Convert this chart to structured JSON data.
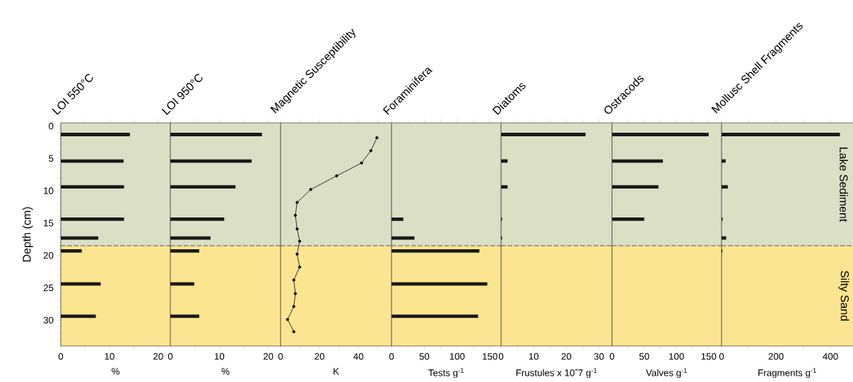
{
  "chart_data": [
    {
      "type": "bar",
      "orientation": "horizontal",
      "title": "LOI 550°C",
      "xlabel": "%",
      "ylabel": "Depth (cm)",
      "x": [
        1.3,
        5.4,
        9.4,
        14.4,
        17.3,
        19.3,
        24.4,
        29.4
      ],
      "values": [
        14.2,
        12.9,
        13.0,
        13.0,
        7.7,
        4.3,
        8.2,
        7.2
      ],
      "color": "#1a1a1a",
      "xlim": [
        0,
        22.5
      ],
      "xticks": [
        0,
        {
          "value": 5,
          "label": null
        },
        10,
        {
          "value": 15,
          "label": null
        },
        20
      ],
      "ylim": [
        34,
        -0.5
      ],
      "yticks": [
        0,
        {
          "value": 1,
          "label": null
        },
        {
          "value": 2,
          "label": null
        },
        {
          "value": 3,
          "label": null
        },
        {
          "value": 4,
          "label": null
        },
        5,
        {
          "value": 6,
          "label": null
        },
        {
          "value": 7,
          "label": null
        },
        {
          "value": 8,
          "label": null
        },
        {
          "value": 9,
          "label": null
        },
        10,
        {
          "value": 11,
          "label": null
        },
        {
          "value": 12,
          "label": null
        },
        {
          "value": 13,
          "label": null
        },
        {
          "value": 14,
          "label": null
        },
        15,
        {
          "value": 16,
          "label": null
        },
        {
          "value": 17,
          "label": null
        },
        {
          "value": 18,
          "label": null
        },
        {
          "value": 19,
          "label": null
        },
        20,
        {
          "value": 21,
          "label": null
        },
        {
          "value": 22,
          "label": null
        },
        {
          "value": 23,
          "label": null
        },
        {
          "value": 24,
          "label": null
        },
        25,
        {
          "value": 26,
          "label": null
        },
        {
          "value": 27,
          "label": null
        },
        {
          "value": 28,
          "label": null
        },
        {
          "value": 29,
          "label": null
        },
        30,
        {
          "value": 31,
          "label": null
        },
        {
          "value": 32,
          "label": null
        },
        {
          "value": 33,
          "label": null
        }
      ],
      "bands": [
        {
          "axis": "y",
          "from": -0.5,
          "to": 18.5,
          "color": "#dadfc6"
        },
        {
          "axis": "y",
          "from": 18.5,
          "to": 34,
          "color": "#fbe590"
        }
      ],
      "ref_lines": [
        {
          "axis": "y",
          "value": 18.5,
          "color": "#4d4d4d",
          "line_style": "dashed"
        }
      ]
    },
    {
      "type": "bar",
      "orientation": "horizontal",
      "title": "LOI 950°C",
      "xlabel": "%",
      "x": [
        1.3,
        5.4,
        9.4,
        14.4,
        17.3,
        19.3,
        24.4,
        29.4
      ],
      "values": [
        18.7,
        16.6,
        13.3,
        11.0,
        8.2,
        5.9,
        4.9,
        5.9
      ],
      "color": "#1a1a1a",
      "xlim": [
        0,
        22.5
      ],
      "xticks": [
        0,
        {
          "value": 5,
          "label": null
        },
        10,
        {
          "value": 15,
          "label": null
        },
        20
      ],
      "ylim": [
        34,
        -0.5
      ],
      "tick_labels": "x",
      "bands": [
        {
          "axis": "y",
          "from": -0.5,
          "to": 18.5,
          "color": "#dadfc6"
        },
        {
          "axis": "y",
          "from": 18.5,
          "to": 34,
          "color": "#fbe590"
        }
      ],
      "ref_lines": [
        {
          "axis": "y",
          "value": 18.5,
          "color": "#4d4d4d",
          "line_style": "dashed"
        }
      ]
    },
    {
      "type": "line",
      "title": "Magnetic Susceptibility",
      "xlabel": "K",
      "x": [
        49.5,
        46.4,
        41.6,
        28.8,
        15.5,
        8.5,
        7.6,
        8.5,
        9.8,
        8.5,
        9.8,
        6.8,
        7.6,
        6.8,
        3.6,
        6.8
      ],
      "values": [
        1.8,
        3.8,
        5.7,
        7.7,
        9.8,
        11.8,
        13.8,
        15.9,
        17.8,
        19.8,
        21.8,
        23.8,
        25.9,
        27.9,
        29.9,
        31.8
      ],
      "color": "#000000",
      "marker": "circle",
      "line_style": "solid",
      "xlim": [
        0,
        57
      ],
      "xticks": [
        0,
        {
          "value": 10,
          "label": null
        },
        20,
        {
          "value": 30,
          "label": null
        },
        40,
        {
          "value": 50,
          "label": null
        }
      ],
      "ylim": [
        34,
        -0.5
      ],
      "tick_labels": "x",
      "bands": [
        {
          "axis": "y",
          "from": -0.5,
          "to": 18.5,
          "color": "#dadfc6"
        },
        {
          "axis": "y",
          "from": 18.5,
          "to": 34,
          "color": "#fbe590"
        }
      ],
      "ref_lines": [
        {
          "axis": "y",
          "value": 18.5,
          "color": "#4d4d4d",
          "line_style": "dashed"
        }
      ]
    },
    {
      "type": "bar",
      "orientation": "horizontal",
      "title": "Foraminifera",
      "xlabel": "Tests g$^{-1}$",
      "x": [
        1.3,
        5.4,
        9.4,
        14.4,
        17.3,
        19.3,
        24.4,
        29.4
      ],
      "values": [
        0,
        0,
        0,
        18,
        35,
        134,
        146,
        132
      ],
      "color": "#1a1a1a",
      "xlim": [
        0,
        167
      ],
      "xticks": [
        0,
        {
          "value": 25,
          "label": null
        },
        50,
        {
          "value": 75,
          "label": null
        },
        100,
        {
          "value": 125,
          "label": null
        },
        150
      ],
      "ylim": [
        34,
        -0.5
      ],
      "tick_labels": "x",
      "bands": [
        {
          "axis": "y",
          "from": -0.5,
          "to": 18.5,
          "color": "#dadfc6"
        },
        {
          "axis": "y",
          "from": 18.5,
          "to": 34,
          "color": "#fbe590"
        }
      ],
      "ref_lines": [
        {
          "axis": "y",
          "value": 18.5,
          "color": "#4d4d4d",
          "line_style": "dashed"
        }
      ]
    },
    {
      "type": "bar",
      "orientation": "horizontal",
      "title": "Diatoms",
      "xlabel": "Frustules x 10ˆ7 g$^{-1}$",
      "x": [
        1.3,
        5.4,
        9.4,
        14.4,
        17.3,
        19.3,
        24.4,
        29.4
      ],
      "values": [
        25.9,
        2.0,
        2.0,
        0.3,
        0.3,
        0,
        0,
        0
      ],
      "color": "#1a1a1a",
      "xlim": [
        0,
        34
      ],
      "xticks": [
        0,
        {
          "value": 5,
          "label": null
        },
        10,
        {
          "value": 15,
          "label": null
        },
        20,
        {
          "value": 25,
          "label": null
        },
        30
      ],
      "ylim": [
        34,
        -0.5
      ],
      "tick_labels": "x",
      "bands": [
        {
          "axis": "y",
          "from": -0.5,
          "to": 18.5,
          "color": "#dadfc6"
        },
        {
          "axis": "y",
          "from": 18.5,
          "to": 34,
          "color": "#fbe590"
        }
      ],
      "ref_lines": [
        {
          "axis": "y",
          "value": 18.5,
          "color": "#4d4d4d",
          "line_style": "dashed"
        }
      ]
    },
    {
      "type": "bar",
      "orientation": "horizontal",
      "title": "Ostracods",
      "xlabel": "Valves g$^{-1}$",
      "x": [
        1.3,
        5.4,
        9.4,
        14.4,
        17.3,
        19.3,
        24.4,
        29.4
      ],
      "values": [
        150,
        79,
        72,
        50,
        0,
        0,
        0,
        0
      ],
      "color": "#1a1a1a",
      "xlim": [
        0,
        170
      ],
      "xticks": [
        0,
        {
          "value": 25,
          "label": null
        },
        50,
        {
          "value": 75,
          "label": null
        },
        100,
        {
          "value": 125,
          "label": null
        },
        150
      ],
      "ylim": [
        34,
        -0.5
      ],
      "tick_labels": "x",
      "bands": [
        {
          "axis": "y",
          "from": -0.5,
          "to": 18.5,
          "color": "#dadfc6"
        },
        {
          "axis": "y",
          "from": 18.5,
          "to": 34,
          "color": "#fbe590"
        }
      ],
      "ref_lines": [
        {
          "axis": "y",
          "value": 18.5,
          "color": "#4d4d4d",
          "line_style": "dashed"
        }
      ]
    },
    {
      "type": "bar",
      "orientation": "horizontal",
      "title": "Mollusc Shell Fragments",
      "xlabel": "Fragments g$^{-1}$",
      "x": [
        1.3,
        5.4,
        9.4,
        14.4,
        17.3,
        19.3,
        24.4,
        29.4
      ],
      "values": [
        435,
        15,
        23,
        4,
        17,
        3,
        0,
        0
      ],
      "color": "#1a1a1a",
      "xlim": [
        0,
        483
      ],
      "xticks": [
        0,
        {
          "value": 100,
          "label": null
        },
        200,
        {
          "value": 300,
          "label": null
        },
        400
      ],
      "ylim": [
        34,
        -0.5
      ],
      "tick_labels": "x",
      "bands": [
        {
          "axis": "y",
          "from": -0.5,
          "to": 18.5,
          "color": "#dadfc6",
          "label": "Lake Sediment"
        },
        {
          "axis": "y",
          "from": 18.5,
          "to": 34,
          "color": "#fbe590",
          "label": "Silty Sand"
        }
      ],
      "ref_lines": [
        {
          "axis": "y",
          "value": 18.5,
          "color": "#4d4d4d",
          "line_style": "dashed"
        }
      ]
    }
  ]
}
